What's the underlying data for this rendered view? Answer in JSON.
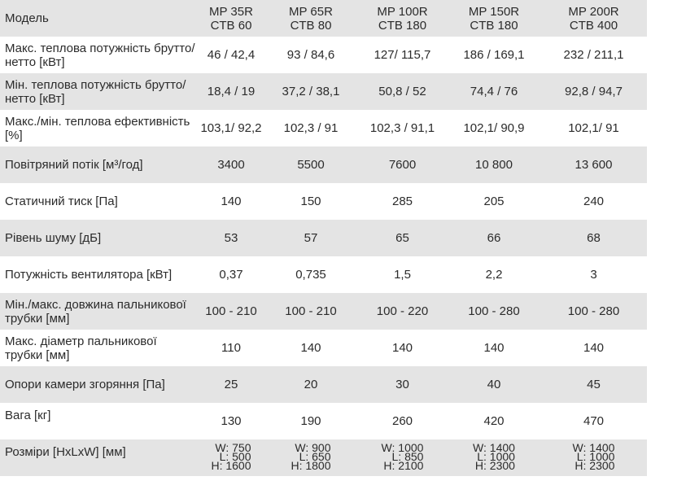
{
  "table": {
    "header_label": "Модель",
    "models": [
      {
        "line1": "MP 35R",
        "line2": "CTB 60"
      },
      {
        "line1": "MP 65R",
        "line2": "CTB 80"
      },
      {
        "line1": "MP 100R",
        "line2": "CTB 180"
      },
      {
        "line1": "MP 150R",
        "line2": "CTB 180"
      },
      {
        "line1": "MP 200R",
        "line2": "CTB 400"
      }
    ],
    "rows": [
      {
        "label": "Макс. теплова потужність брутто/нетто [кВт]",
        "values": [
          "46  /  42,4",
          "93  /  84,6",
          "127/  115,7",
          "186  /  169,1",
          "232  /  211,1"
        ]
      },
      {
        "label": "Мін. теплова потужність брутто/нетто [кВт]",
        "values": [
          "18,4 / 19",
          "37,2  /  38,1",
          "50,8  /  52",
          "74,4  /  76",
          "92,8  /  94,7"
        ]
      },
      {
        "label": "Макс./мін. теплова ефективність [%]",
        "values": [
          "103,1/  92,2",
          "102,3 /  91",
          "102,3 /  91,1",
          "102,1/  90,9",
          "102,1/  91"
        ]
      },
      {
        "label": "Повітряний потік [м³/год]",
        "values": [
          "3400",
          "5500",
          "7600",
          "10 800",
          "13 600"
        ]
      },
      {
        "label": "Статичний тиск [Па]",
        "values": [
          "140",
          "150",
          "285",
          "205",
          "240"
        ]
      },
      {
        "label": "Рівень шуму [дБ]",
        "values": [
          "53",
          "57",
          "65",
          "66",
          "68"
        ]
      },
      {
        "label": "Потужність вентилятора [кВт]",
        "values": [
          "0,37",
          "0,735",
          "1,5",
          "2,2",
          "3"
        ]
      },
      {
        "label": "Мін./макс. довжина пальникової трубки [мм]",
        "values": [
          "100 - 210",
          "100 - 210",
          "100 - 220",
          "100 - 280",
          "100 - 280"
        ]
      },
      {
        "label": "Макс. діаметр пальникової трубки [мм]",
        "values": [
          "110",
          "140",
          "140",
          "140",
          "140"
        ]
      },
      {
        "label": "Опори камери згоряння [Па]",
        "values": [
          "25",
          "20",
          "30",
          "40",
          "45"
        ]
      },
      {
        "label": "Вага [кг]",
        "values": [
          "130",
          "190",
          "260",
          "420",
          "470"
        ]
      }
    ],
    "dimensions": {
      "label": "Розміри [HxLxW] [мм]",
      "values": [
        {
          "w": "W:  750",
          "l": "L:  500",
          "h": "H: 1600"
        },
        {
          "w": "W:  900",
          "l": "L:  650",
          "h": "H: 1800"
        },
        {
          "w": "W:  1000",
          "l": "L:  850",
          "h": "H: 2100"
        },
        {
          "w": "W:  1400",
          "l": "L: 1000",
          "h": "H: 2300"
        },
        {
          "w": "W:  1400",
          "l": "L: 1000",
          "h": "H: 2300"
        }
      ]
    }
  }
}
